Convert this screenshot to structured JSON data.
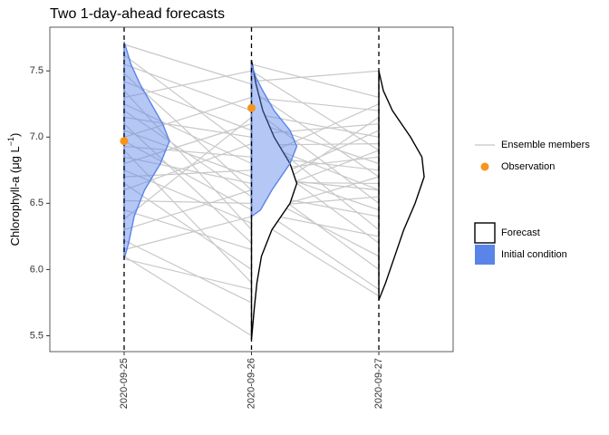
{
  "chart_data": {
    "type": "ensemble_forecast",
    "title": "Two 1-day-ahead forecasts",
    "y_label": "Chlorophyll-a (μg L",
    "y_label_sup": "−1",
    "y_label_end": ")",
    "xticks": [
      "2020-09-25",
      "2020-09-26",
      "2020-09-27"
    ],
    "xlim": [
      "2020-09-24T10:00Z",
      "2020-09-27T14:00Z"
    ],
    "ylim": [
      5.38,
      7.83
    ],
    "yticks": [
      5.5,
      {
        "value": 6,
        "label": "6.0"
      },
      6.5,
      {
        "value": 7,
        "label": "7.0"
      },
      7.5
    ],
    "ensemble": {
      "name": "Ensemble members",
      "color": "#c8c8c8",
      "forecasts": [
        {
          "x": [
            "2020-09-25",
            "2020-09-26"
          ],
          "members": [
            [
              7.7,
              7.4
            ],
            [
              7.62,
              6.9
            ],
            [
              7.55,
              7.2
            ],
            [
              7.48,
              6.6
            ],
            [
              7.42,
              7.05
            ],
            [
              7.35,
              6.3
            ],
            [
              7.3,
              7.5
            ],
            [
              7.25,
              6.8
            ],
            [
              7.2,
              6.55
            ],
            [
              7.15,
              7.0
            ],
            [
              7.1,
              6.2
            ],
            [
              7.05,
              6.7
            ],
            [
              7.0,
              7.3
            ],
            [
              6.97,
              6.45
            ],
            [
              6.93,
              6.85
            ],
            [
              6.9,
              5.9
            ],
            [
              6.85,
              6.65
            ],
            [
              6.8,
              7.1
            ],
            [
              6.75,
              6.35
            ],
            [
              6.7,
              6.75
            ],
            [
              6.65,
              6.0
            ],
            [
              6.6,
              6.95
            ],
            [
              6.52,
              6.5
            ],
            [
              6.45,
              6.15
            ],
            [
              6.38,
              7.15
            ],
            [
              6.3,
              6.6
            ],
            [
              6.22,
              5.75
            ],
            [
              6.15,
              6.4
            ],
            [
              6.1,
              5.5
            ],
            [
              6.08,
              5.85
            ]
          ]
        },
        {
          "x": [
            "2020-09-26",
            "2020-09-27"
          ],
          "members": [
            [
              7.55,
              7.3
            ],
            [
              7.5,
              6.9
            ],
            [
              7.42,
              7.5
            ],
            [
              7.35,
              6.7
            ],
            [
              7.3,
              7.2
            ],
            [
              7.22,
              6.5
            ],
            [
              7.18,
              7.0
            ],
            [
              7.12,
              6.8
            ],
            [
              7.07,
              6.3
            ],
            [
              7.02,
              7.1
            ],
            [
              6.98,
              6.6
            ],
            [
              6.94,
              6.95
            ],
            [
              6.9,
              6.2
            ],
            [
              6.86,
              6.75
            ],
            [
              6.82,
              7.25
            ],
            [
              6.78,
              6.45
            ],
            [
              6.74,
              6.85
            ],
            [
              6.7,
              6.0
            ],
            [
              6.66,
              6.65
            ],
            [
              6.62,
              7.05
            ],
            [
              6.58,
              6.4
            ],
            [
              6.54,
              6.9
            ],
            [
              6.5,
              5.85
            ],
            [
              6.47,
              6.55
            ],
            [
              6.44,
              6.25
            ],
            [
              6.42,
              6.7
            ],
            [
              6.4,
              5.8
            ],
            [
              6.5,
              7.15
            ],
            [
              6.6,
              6.1
            ],
            [
              6.7,
              6.6
            ]
          ]
        }
      ]
    },
    "observations": {
      "name": "Observation",
      "color": "#f7941d",
      "x": [
        "2020-09-25",
        "2020-09-26"
      ],
      "values": [
        6.97,
        7.22
      ]
    },
    "forecast_density": {
      "name": "Forecast",
      "color": "#000000",
      "curves": [
        {
          "x": "2020-09-26",
          "y": [
            5.47,
            5.7,
            5.9,
            6.1,
            6.3,
            6.5,
            6.65,
            6.8,
            7.0,
            7.2,
            7.4,
            7.58
          ],
          "density": [
            0,
            0.06,
            0.12,
            0.22,
            0.45,
            0.85,
            1.0,
            0.85,
            0.5,
            0.25,
            0.1,
            0
          ]
        },
        {
          "x": "2020-09-27",
          "y": [
            5.77,
            5.9,
            6.1,
            6.3,
            6.5,
            6.7,
            6.85,
            7.0,
            7.2,
            7.35,
            7.5
          ],
          "density": [
            0,
            0.15,
            0.35,
            0.55,
            0.8,
            1.0,
            0.95,
            0.7,
            0.3,
            0.1,
            0
          ]
        }
      ]
    },
    "initial_condition": {
      "name": "Initial condition",
      "color": "#5b84e8",
      "curves": [
        {
          "x": "2020-09-25",
          "y": [
            6.08,
            6.2,
            6.4,
            6.6,
            6.8,
            6.97,
            7.1,
            7.25,
            7.4,
            7.55,
            7.72
          ],
          "density": [
            0,
            0.1,
            0.22,
            0.45,
            0.8,
            1.0,
            0.85,
            0.6,
            0.35,
            0.15,
            0
          ]
        },
        {
          "x": "2020-09-26",
          "y": [
            6.4,
            6.45,
            6.6,
            6.8,
            6.93,
            7.05,
            7.2,
            7.35,
            7.45,
            7.55
          ],
          "density": [
            0,
            0.2,
            0.45,
            0.85,
            1.0,
            0.85,
            0.5,
            0.25,
            0.1,
            0
          ]
        }
      ]
    }
  }
}
